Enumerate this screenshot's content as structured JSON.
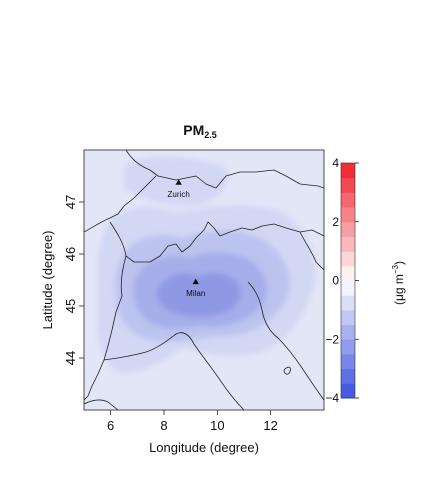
{
  "title": {
    "main": "PM",
    "subscript": "2.5"
  },
  "map": {
    "xlabel": "Longitude (degree)",
    "ylabel": "Latitude (degree)",
    "xlim": [
      5,
      14
    ],
    "ylim": [
      43,
      48
    ],
    "xticks": [
      6,
      8,
      10,
      12
    ],
    "yticks": [
      44,
      45,
      46,
      47
    ],
    "cities": [
      {
        "name": "Zurich",
        "lon": 8.55,
        "lat": 47.37
      },
      {
        "name": "Milan",
        "lon": 9.19,
        "lat": 45.46
      }
    ]
  },
  "colorbar": {
    "min": -4,
    "max": 4,
    "ticks": [
      -4,
      -2,
      0,
      2,
      4
    ],
    "unit_main": "(μg m",
    "unit_sup": "−3",
    "unit_close": ")",
    "colors": {
      "low": "#3a4fe0",
      "mid": "#ffffff",
      "high": "#f0202a"
    }
  },
  "field_colors": {
    "background": "#e3e6f7",
    "level1": "#d2d7f4",
    "level2": "#bcc3ef",
    "level3": "#a6aeea",
    "level4": "#8f98e3"
  }
}
